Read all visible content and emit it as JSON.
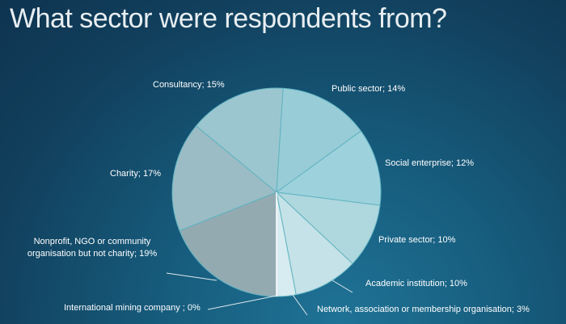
{
  "chart_data": {
    "type": "pie",
    "title": "What sector were respondents from?",
    "slices": [
      {
        "label": "Nonprofit, NGO or community organisation but not charity",
        "value": 19,
        "display": "Nonprofit, NGO or community organisation but not charity; 19%",
        "color": "#93aab1"
      },
      {
        "label": "Charity",
        "value": 17,
        "display": "Charity; 17%",
        "color": "#9bbcc4"
      },
      {
        "label": "Consultancy",
        "value": 15,
        "display": "Consultancy; 15%",
        "color": "#9cc6cf"
      },
      {
        "label": "Public sector",
        "value": 14,
        "display": "Public sector; 14%",
        "color": "#98ccd6"
      },
      {
        "label": "Social enterprise",
        "value": 12,
        "display": "Social enterprise; 12%",
        "color": "#9dd2dc"
      },
      {
        "label": "Private sector",
        "value": 10,
        "display": "Private sector; 10%",
        "color": "#afd7de"
      },
      {
        "label": "Academic institution",
        "value": 10,
        "display": "Academic institution; 10%",
        "color": "#c4e2e7"
      },
      {
        "label": "Network, association or membership organisation",
        "value": 3,
        "display": "Network, association or membership organisation; 3%",
        "color": "#d7ecf0"
      },
      {
        "label": "International mining company",
        "value": 0,
        "display": "International mining company ; 0%",
        "color": "#ffffff"
      }
    ],
    "unit": "%",
    "legend": "none (data labels)"
  }
}
